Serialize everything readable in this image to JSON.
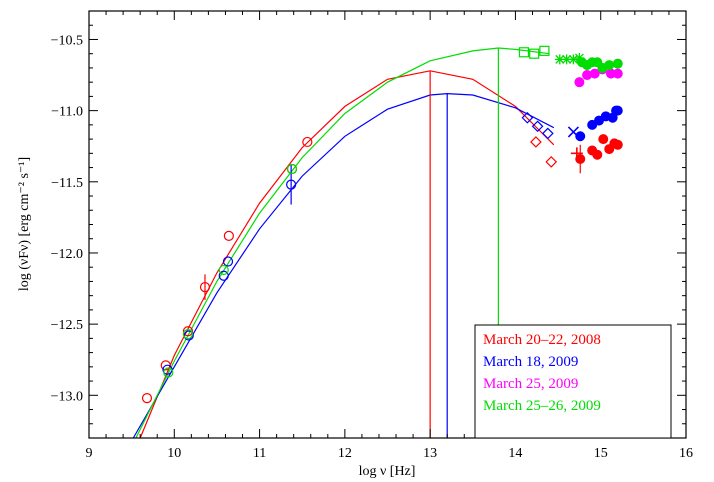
{
  "chart_data": {
    "type": "scatter",
    "title": "",
    "xlabel": "log ν [Hz]",
    "ylabel": "log (νFν) [erg cm⁻² s⁻¹]",
    "xlim": [
      9,
      16
    ],
    "ylim": [
      -13.3,
      -10.3
    ],
    "xticks": [
      "9",
      "10",
      "11",
      "12",
      "13",
      "14",
      "15",
      "16"
    ],
    "yticks": [
      "−10.5",
      "−11.0",
      "−11.5",
      "−12.0",
      "−12.5",
      "−13.0"
    ],
    "grid": false,
    "legend_position": "bottom-right",
    "series": [
      {
        "name": "March 20‒22, 2008",
        "color": "#ff0000",
        "points": [
          {
            "x": 9.68,
            "y": -13.02,
            "marker": "circle"
          },
          {
            "x": 9.9,
            "y": -12.79,
            "marker": "circle"
          },
          {
            "x": 10.16,
            "y": -12.55,
            "marker": "circle"
          },
          {
            "x": 10.36,
            "y": -12.24,
            "marker": "circle",
            "err": 0.09
          },
          {
            "x": 10.64,
            "y": -11.88,
            "marker": "circle"
          },
          {
            "x": 11.38,
            "y": -11.41,
            "marker": "circle"
          },
          {
            "x": 11.56,
            "y": -11.22,
            "marker": "circle"
          },
          {
            "x": 14.24,
            "y": -11.22,
            "marker": "diamond"
          },
          {
            "x": 14.42,
            "y": -11.36,
            "marker": "diamond"
          },
          {
            "x": 14.72,
            "y": -11.3,
            "marker": "plus"
          },
          {
            "x": 14.76,
            "y": -11.34,
            "marker": "dot",
            "err": 0.1
          },
          {
            "x": 14.9,
            "y": -11.28,
            "marker": "dot"
          },
          {
            "x": 14.96,
            "y": -11.31,
            "marker": "dot"
          },
          {
            "x": 15.03,
            "y": -11.2,
            "marker": "dot"
          },
          {
            "x": 15.1,
            "y": -11.27,
            "marker": "dot"
          },
          {
            "x": 15.16,
            "y": -11.23,
            "marker": "dot"
          },
          {
            "x": 15.2,
            "y": -11.24,
            "marker": "dot"
          }
        ],
        "fit_peak": {
          "x": 13.0,
          "y": -10.72
        }
      },
      {
        "name": "March 18, 2009",
        "color": "#0000ff",
        "points": [
          {
            "x": 9.92,
            "y": -12.82,
            "marker": "circle"
          },
          {
            "x": 10.17,
            "y": -12.58,
            "marker": "circle"
          },
          {
            "x": 10.58,
            "y": -12.16,
            "marker": "circle"
          },
          {
            "x": 10.63,
            "y": -12.06,
            "marker": "circle"
          },
          {
            "x": 11.37,
            "y": -11.52,
            "marker": "circle",
            "err": 0.14
          },
          {
            "x": 14.14,
            "y": -11.05,
            "marker": "diamond"
          },
          {
            "x": 14.26,
            "y": -11.11,
            "marker": "diamond"
          },
          {
            "x": 14.38,
            "y": -11.16,
            "marker": "diamond"
          },
          {
            "x": 14.68,
            "y": -11.15,
            "marker": "cross"
          },
          {
            "x": 14.76,
            "y": -11.18,
            "marker": "dot"
          },
          {
            "x": 14.9,
            "y": -11.1,
            "marker": "dot"
          },
          {
            "x": 14.98,
            "y": -11.07,
            "marker": "dot"
          },
          {
            "x": 15.06,
            "y": -11.04,
            "marker": "dot"
          },
          {
            "x": 15.14,
            "y": -11.05,
            "marker": "dot"
          },
          {
            "x": 15.18,
            "y": -11.0,
            "marker": "dot"
          },
          {
            "x": 15.2,
            "y": -11.0,
            "marker": "dot"
          }
        ],
        "fit_peak": {
          "x": 13.2,
          "y": -10.88
        }
      },
      {
        "name": "March 25, 2009",
        "color": "#ff00ff",
        "points": [
          {
            "x": 14.75,
            "y": -10.8,
            "marker": "dot"
          },
          {
            "x": 14.84,
            "y": -10.75,
            "marker": "dot"
          },
          {
            "x": 14.93,
            "y": -10.74,
            "marker": "dot"
          },
          {
            "x": 15.02,
            "y": -10.71,
            "marker": "dot"
          },
          {
            "x": 15.12,
            "y": -10.74,
            "marker": "dot"
          },
          {
            "x": 15.2,
            "y": -10.74,
            "marker": "dot"
          }
        ]
      },
      {
        "name": "March 25‒26, 2009",
        "color": "#00dd00",
        "points": [
          {
            "x": 9.93,
            "y": -12.84,
            "marker": "circle"
          },
          {
            "x": 10.16,
            "y": -12.57,
            "marker": "circle"
          },
          {
            "x": 10.58,
            "y": -12.12,
            "marker": "circle"
          },
          {
            "x": 11.38,
            "y": -11.41,
            "marker": "circle"
          },
          {
            "x": 14.1,
            "y": -10.59,
            "marker": "square"
          },
          {
            "x": 14.22,
            "y": -10.6,
            "marker": "square"
          },
          {
            "x": 14.34,
            "y": -10.58,
            "marker": "square"
          },
          {
            "x": 14.52,
            "y": -10.64,
            "marker": "asterisk"
          },
          {
            "x": 14.6,
            "y": -10.64,
            "marker": "asterisk"
          },
          {
            "x": 14.68,
            "y": -10.64,
            "marker": "asterisk"
          },
          {
            "x": 14.75,
            "y": -10.63,
            "marker": "asterisk"
          },
          {
            "x": 14.78,
            "y": -10.66,
            "marker": "dot"
          },
          {
            "x": 14.84,
            "y": -10.68,
            "marker": "dot"
          },
          {
            "x": 14.9,
            "y": -10.66,
            "marker": "dot"
          },
          {
            "x": 14.96,
            "y": -10.66,
            "marker": "dot"
          },
          {
            "x": 15.02,
            "y": -10.7,
            "marker": "dot"
          },
          {
            "x": 15.1,
            "y": -10.68,
            "marker": "dot"
          },
          {
            "x": 15.2,
            "y": -10.67,
            "marker": "dot"
          }
        ],
        "fit_peak": {
          "x": 13.8,
          "y": -10.56
        }
      }
    ],
    "fits": [
      {
        "color": "#ff0000",
        "xpeak": 13.0,
        "ypeak": -10.72,
        "xmax": 14.45,
        "points": [
          {
            "x": 9.6,
            "y": -13.3
          },
          {
            "x": 10.0,
            "y": -12.72
          },
          {
            "x": 10.5,
            "y": -12.14
          },
          {
            "x": 11.0,
            "y": -11.65
          },
          {
            "x": 11.5,
            "y": -11.26
          },
          {
            "x": 12.0,
            "y": -10.97
          },
          {
            "x": 12.5,
            "y": -10.78
          },
          {
            "x": 13.0,
            "y": -10.72
          },
          {
            "x": 13.5,
            "y": -10.78
          },
          {
            "x": 14.0,
            "y": -10.97
          },
          {
            "x": 14.45,
            "y": -11.24
          }
        ]
      },
      {
        "color": "#0000ff",
        "xpeak": 13.2,
        "ypeak": -10.88,
        "xmax": 14.45,
        "points": [
          {
            "x": 9.52,
            "y": -13.3
          },
          {
            "x": 10.0,
            "y": -12.8
          },
          {
            "x": 10.5,
            "y": -12.28
          },
          {
            "x": 11.0,
            "y": -11.83
          },
          {
            "x": 11.5,
            "y": -11.46
          },
          {
            "x": 12.0,
            "y": -11.18
          },
          {
            "x": 12.5,
            "y": -10.99
          },
          {
            "x": 13.0,
            "y": -10.89
          },
          {
            "x": 13.2,
            "y": -10.88
          },
          {
            "x": 13.5,
            "y": -10.89
          },
          {
            "x": 14.0,
            "y": -10.98
          },
          {
            "x": 14.45,
            "y": -11.12
          }
        ]
      },
      {
        "color": "#00dd00",
        "xpeak": 13.8,
        "ypeak": -10.56,
        "xmax": 14.4,
        "points": [
          {
            "x": 9.55,
            "y": -13.3
          },
          {
            "x": 10.0,
            "y": -12.76
          },
          {
            "x": 10.5,
            "y": -12.2
          },
          {
            "x": 11.0,
            "y": -11.72
          },
          {
            "x": 11.5,
            "y": -11.33
          },
          {
            "x": 12.0,
            "y": -11.02
          },
          {
            "x": 12.5,
            "y": -10.8
          },
          {
            "x": 13.0,
            "y": -10.65
          },
          {
            "x": 13.5,
            "y": -10.58
          },
          {
            "x": 13.8,
            "y": -10.56
          },
          {
            "x": 14.0,
            "y": -10.57
          },
          {
            "x": 14.4,
            "y": -10.6
          }
        ]
      }
    ]
  }
}
